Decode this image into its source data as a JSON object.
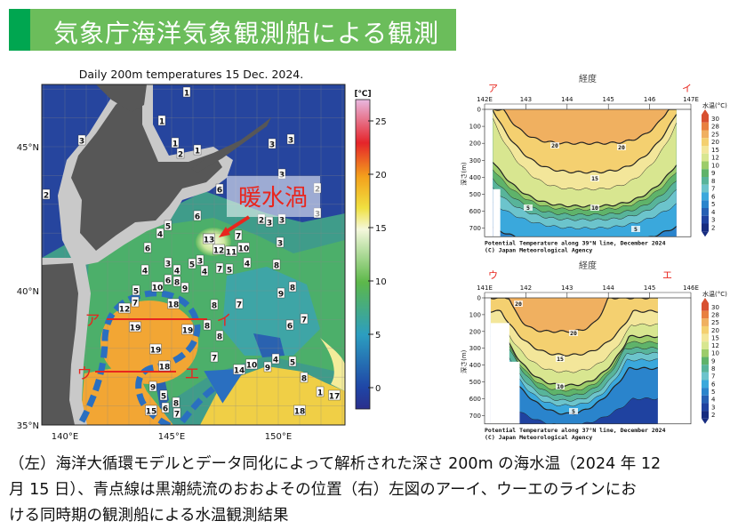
{
  "header": {
    "title": "気象庁海洋気象観測船による観測"
  },
  "map": {
    "title": "Daily 200m temperatures 15 Dec. 2024.",
    "lat_labels": [
      "45°N",
      "40°N",
      "35°N"
    ],
    "lon_labels": [
      "140°E",
      "145°E",
      "150°E"
    ],
    "colorbar": {
      "unit": "[℃]",
      "ticks": [
        "25",
        "20",
        "15",
        "10",
        "5",
        "0"
      ],
      "range_c": [
        -2,
        27
      ]
    },
    "annotation_eddy": "暖水渦",
    "line_labels": {
      "a": "ア",
      "i": "イ",
      "u": "ウ",
      "e": "エ"
    },
    "line_color": "#e8261e",
    "kuroshio_color": "#2a6fc0",
    "station_labels": [
      "1",
      "1",
      "3",
      "1",
      "2",
      "1",
      "3",
      "3",
      "2",
      "3",
      "6",
      "2",
      "2",
      "3",
      "3",
      "3",
      "6",
      "5",
      "4",
      "13",
      "7",
      "3",
      "6",
      "12",
      "11",
      "10",
      "3",
      "5",
      "3",
      "4",
      "4",
      "4",
      "7",
      "5",
      "4",
      "8",
      "6",
      "8",
      "10",
      "9",
      "8",
      "9",
      "5",
      "7",
      "18",
      "8",
      "7",
      "12",
      "19",
      "19",
      "8",
      "8",
      "7",
      "6",
      "19",
      "7",
      "4",
      "5",
      "9",
      "10",
      "14",
      "18",
      "8",
      "9",
      "5",
      "8",
      "6",
      "7",
      "18",
      "17",
      "1",
      "15"
    ]
  },
  "sections": [
    {
      "header": "経度",
      "left_label": "ア",
      "right_label": "イ",
      "lon_ticks": [
        "142E",
        "143",
        "144",
        "145",
        "146",
        "147E"
      ],
      "depth_ticks": [
        "0",
        "100",
        "200",
        "300",
        "400",
        "500",
        "600",
        "700"
      ],
      "depth_axis": "深さ(m)",
      "caption": "Potential Temperature along 39°N line, December 2024",
      "credit": "(C) Japan Meteorological Agency",
      "contour_labels": [
        "20",
        "20",
        "15",
        "10",
        "5",
        "5"
      ]
    },
    {
      "header": "経度",
      "left_label": "ウ",
      "right_label": "エ",
      "lon_ticks": [
        "141E",
        "142",
        "143",
        "144",
        "145",
        "146E"
      ],
      "depth_ticks": [
        "0",
        "100",
        "200",
        "300",
        "400",
        "500",
        "600",
        "700"
      ],
      "depth_axis": "深さ(m)",
      "caption": "Potential Temperature along 37°N line, December 2024",
      "credit": "(C) Japan Meteorological Agency",
      "contour_labels": [
        "20",
        "20",
        "15",
        "10",
        "5"
      ]
    }
  ],
  "section_colorbar": {
    "unit": "水温(°C)",
    "ticks": [
      "30",
      "28",
      "25",
      "20",
      "15",
      "12",
      "10",
      "9",
      "8",
      "7",
      "6",
      "5",
      "4",
      "3",
      "2"
    ],
    "colors": [
      "#d85030",
      "#e88040",
      "#f0b060",
      "#f4d070",
      "#f3e69a",
      "#d8e690",
      "#9ccc6a",
      "#5fb36a",
      "#58b49a",
      "#6cc4cc",
      "#3aa8dc",
      "#2a84cc",
      "#2660b4",
      "#1f42a0",
      "#172c80"
    ]
  },
  "caption": [
    "（左）海洋大循環モデルとデータ同化によって解析された深さ 200m の海水温（2024 年 12",
    "月 15 日）、青点線は黒潮続流のおおよその位置（右）左図のアーイ、ウーエのラインにお",
    "ける同時期の観測船による水温観測結果"
  ]
}
